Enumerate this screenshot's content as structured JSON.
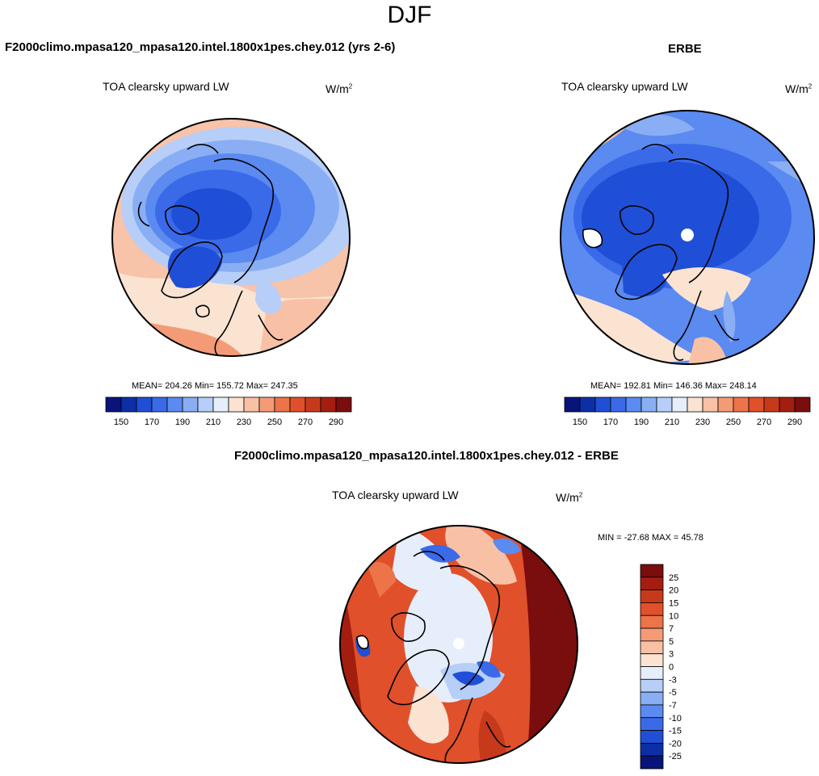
{
  "title": "DJF",
  "panels": [
    {
      "header": "F2000climo.mpasa120_mpasa120.intel.1800x1pes.chey.012 (yrs 2-6)",
      "subtitle": "TOA clearsky upward LW",
      "units_base": "W/m",
      "units_exp": "2",
      "stats": "MEAN= 204.26  Min= 155.72  Max= 247.35"
    },
    {
      "header": "ERBE",
      "subtitle": "TOA clearsky upward LW",
      "units_base": "W/m",
      "units_exp": "2",
      "stats": "MEAN= 192.81  Min= 146.36  Max= 248.14"
    },
    {
      "header": "F2000climo.mpasa120_mpasa120.intel.1800x1pes.chey.012 - ERBE",
      "subtitle": "TOA clearsky upward LW",
      "units_base": "W/m",
      "units_exp": "2",
      "stats": "MIN = -27.68 MAX =  45.78"
    }
  ],
  "colorbar_abs": {
    "colors": [
      "#08147a",
      "#0c2fa6",
      "#1f4fd6",
      "#3a6ae8",
      "#5b8af0",
      "#89aef4",
      "#b7cef8",
      "#e6eefb",
      "#fbe3d2",
      "#f8c1a6",
      "#f39b77",
      "#ec7448",
      "#e0502a",
      "#c63a1b",
      "#a41e10",
      "#7a0d0d"
    ],
    "labels": [
      "150",
      "170",
      "190",
      "210",
      "230",
      "250",
      "270",
      "290"
    ]
  },
  "colorbar_diff": {
    "colors": [
      "#08147a",
      "#0c2fa6",
      "#1f4fd6",
      "#3a6ae8",
      "#5b8af0",
      "#89aef4",
      "#b7cef8",
      "#e6eefb",
      "#fbe3d2",
      "#f8c1a6",
      "#f39b77",
      "#ec7448",
      "#e0502a",
      "#c63a1b",
      "#a41e10",
      "#7a0d0d"
    ],
    "labels": [
      "25",
      "20",
      "15",
      "10",
      "7",
      "5",
      "3",
      "0",
      "-3",
      "-5",
      "-7",
      "-10",
      "-15",
      "-20",
      "-25"
    ]
  }
}
